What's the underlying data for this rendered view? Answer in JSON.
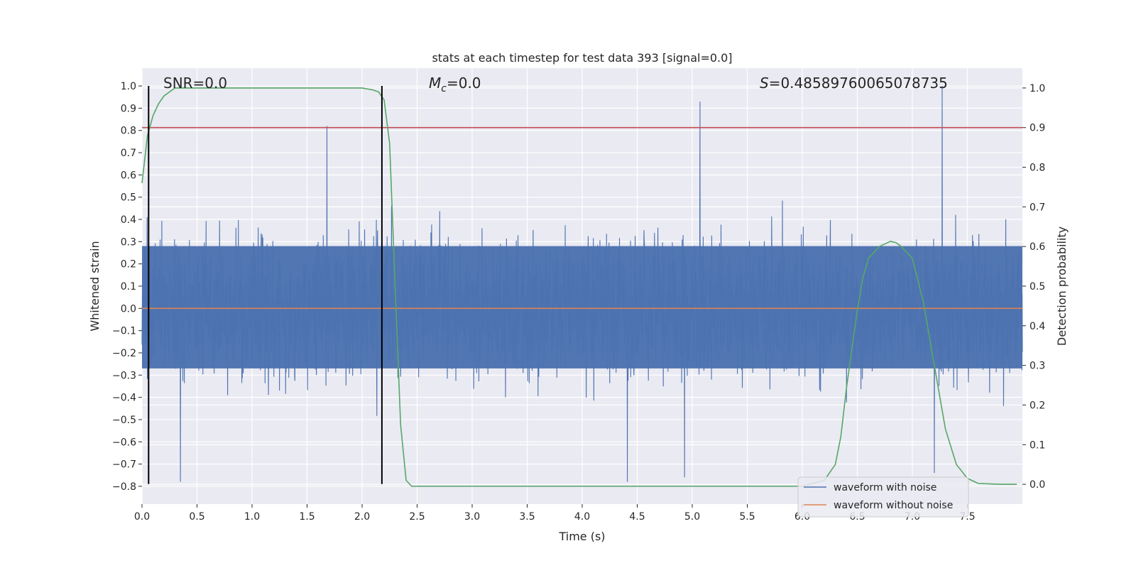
{
  "chart_data": {
    "type": "line",
    "title": "stats at each timestep for test data 393 [signal=0.0]",
    "xlabel": "Time (s)",
    "ylabel_left": "Whitened strain",
    "ylabel_right": "Detection probability",
    "xlim": [
      0,
      8.0
    ],
    "ylim_left": [
      -0.88,
      1.08
    ],
    "ylim_right": [
      -0.05,
      1.05
    ],
    "x_ticks": [
      0.0,
      0.5,
      1.0,
      1.5,
      2.0,
      2.5,
      3.0,
      3.5,
      4.0,
      4.5,
      5.0,
      5.5,
      6.0,
      6.5,
      7.0,
      7.5
    ],
    "x_tick_labels": [
      "0.0",
      "0.5",
      "1.0",
      "1.5",
      "2.0",
      "2.5",
      "3.0",
      "3.5",
      "4.0",
      "4.5",
      "5.0",
      "5.5",
      "6.0",
      "6.5",
      "7.0",
      "7.5"
    ],
    "y_left_ticks": [
      -0.8,
      -0.7,
      -0.6,
      -0.5,
      -0.4,
      -0.3,
      -0.2,
      -0.1,
      0.0,
      0.1,
      0.2,
      0.3,
      0.4,
      0.5,
      0.6,
      0.7,
      0.8,
      0.9,
      1.0
    ],
    "y_left_tick_labels": [
      "−0.8",
      "−0.7",
      "−0.6",
      "−0.5",
      "−0.4",
      "−0.3",
      "−0.2",
      "−0.1",
      "0.0",
      "0.1",
      "0.2",
      "0.3",
      "0.4",
      "0.5",
      "0.6",
      "0.7",
      "0.8",
      "0.9",
      "1.0"
    ],
    "y_right_ticks": [
      0.0,
      0.1,
      0.2,
      0.3,
      0.4,
      0.5,
      0.6,
      0.7,
      0.8,
      0.9,
      1.0
    ],
    "y_right_tick_labels": [
      "0.0",
      "0.1",
      "0.2",
      "0.3",
      "0.4",
      "0.5",
      "0.6",
      "0.7",
      "0.8",
      "0.9",
      "1.0"
    ],
    "grid": true,
    "legend_position": "lower-right",
    "series": [
      {
        "name": "waveform with noise",
        "axis": "left",
        "color": "#4c72b0",
        "style": "dense noise trace",
        "x_range": [
          0.0,
          8.0
        ],
        "core_band": [
          -0.27,
          0.28
        ],
        "peaks": [
          {
            "x": 1.68,
            "y": 0.82
          },
          {
            "x": 5.07,
            "y": 0.93
          },
          {
            "x": 7.27,
            "y": 1.0
          },
          {
            "x": 0.35,
            "y": -0.78
          },
          {
            "x": 4.41,
            "y": -0.78
          },
          {
            "x": 4.93,
            "y": -0.76
          },
          {
            "x": 7.2,
            "y": -0.74
          }
        ]
      },
      {
        "name": "waveform without noise",
        "axis": "left",
        "color": "#dd8452",
        "x": [
          0.0,
          8.0
        ],
        "y": [
          0.0,
          0.0
        ]
      },
      {
        "name": "",
        "axis": "right",
        "color": "#55a868",
        "x": [
          0.0,
          0.05,
          0.1,
          0.15,
          0.2,
          0.25,
          0.3,
          0.4,
          0.6,
          1.0,
          1.5,
          2.0,
          2.1,
          2.15,
          2.2,
          2.25,
          2.3,
          2.35,
          2.4,
          2.45,
          2.6,
          3.0,
          4.0,
          5.0,
          6.0,
          6.2,
          6.3,
          6.35,
          6.4,
          6.45,
          6.5,
          6.55,
          6.6,
          6.7,
          6.8,
          6.85,
          6.9,
          7.0,
          7.1,
          7.2,
          7.3,
          7.4,
          7.5,
          7.6,
          7.8,
          7.95
        ],
        "y": [
          0.76,
          0.88,
          0.93,
          0.96,
          0.98,
          0.99,
          1.0,
          1.0,
          1.0,
          1.0,
          1.0,
          1.0,
          0.995,
          0.99,
          0.97,
          0.86,
          0.5,
          0.15,
          0.01,
          -0.005,
          -0.005,
          -0.005,
          -0.005,
          -0.005,
          -0.005,
          0.01,
          0.05,
          0.12,
          0.24,
          0.34,
          0.44,
          0.52,
          0.57,
          0.6,
          0.613,
          0.61,
          0.6,
          0.57,
          0.46,
          0.3,
          0.14,
          0.05,
          0.015,
          0.002,
          0.0,
          0.0
        ]
      },
      {
        "name": "",
        "axis": "right",
        "color": "#c44e52",
        "x": [
          0.0,
          8.0
        ],
        "y": [
          0.9,
          0.9
        ]
      },
      {
        "name": "",
        "axis": "left",
        "color": "#000000",
        "style": "vertical",
        "x": [
          0.06,
          0.06
        ],
        "y": [
          -0.79,
          1.0
        ]
      },
      {
        "name": "",
        "axis": "left",
        "color": "#000000",
        "style": "vertical",
        "x": [
          2.18,
          2.18
        ],
        "y": [
          -0.79,
          1.0
        ]
      }
    ],
    "annotations": {
      "snr": "SNR=0.0",
      "mc_symbol": "M",
      "mc_subscript": "c",
      "mc_value": "=0.0",
      "s_symbol": "S",
      "s_value": "=0.48589760065078735"
    }
  }
}
